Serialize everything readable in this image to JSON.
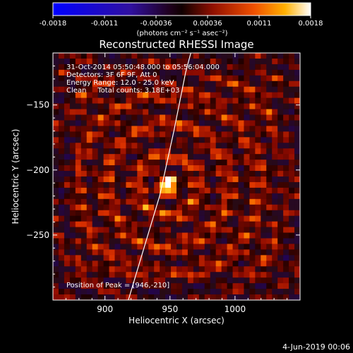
{
  "chart_data": {
    "type": "heatmap",
    "title": "Reconstructed RHESSI Image",
    "xlabel": "Heliocentric X (arcsec)",
    "ylabel": "Heliocentric Y (arcsec)",
    "xlim": [
      860,
      1050
    ],
    "ylim": [
      -300,
      -110
    ],
    "xticks": [
      900,
      950,
      1000
    ],
    "yticks": [
      -250,
      -200,
      -150
    ],
    "colorbar": {
      "label": "(photons cm⁻² s⁻¹ asec⁻²)",
      "range": [
        -0.0018,
        0.0018
      ],
      "ticks": [
        "-0.0018",
        "-0.0011",
        "-0.00036",
        "0.00036",
        "0.0011",
        "0.0018"
      ]
    },
    "annotations": {
      "time_range": "31-Oct-2014 05:50:48.000 to 05:56:04.000",
      "detectors": "Detectors: 3F 6F 9F, Att 0",
      "energy_range": "Energy Range: 12.0 - 25.0 keV",
      "clean_counts": "Clean     Total counts: 3.18E+03",
      "peak_position": "Position of Peak = [946,-210]"
    },
    "peak": {
      "x": 946,
      "y": -210,
      "value": 0.0018
    },
    "limb_curve": [
      [
        918,
        -300
      ],
      [
        930,
        -260
      ],
      [
        942,
        -220
      ],
      [
        953,
        -170
      ],
      [
        962,
        -125
      ],
      [
        966,
        -110
      ]
    ],
    "colors": {
      "limb_line": "#ffffff",
      "background": "#000000"
    }
  },
  "footer": {
    "date": "4-Jun-2019 00:06"
  }
}
